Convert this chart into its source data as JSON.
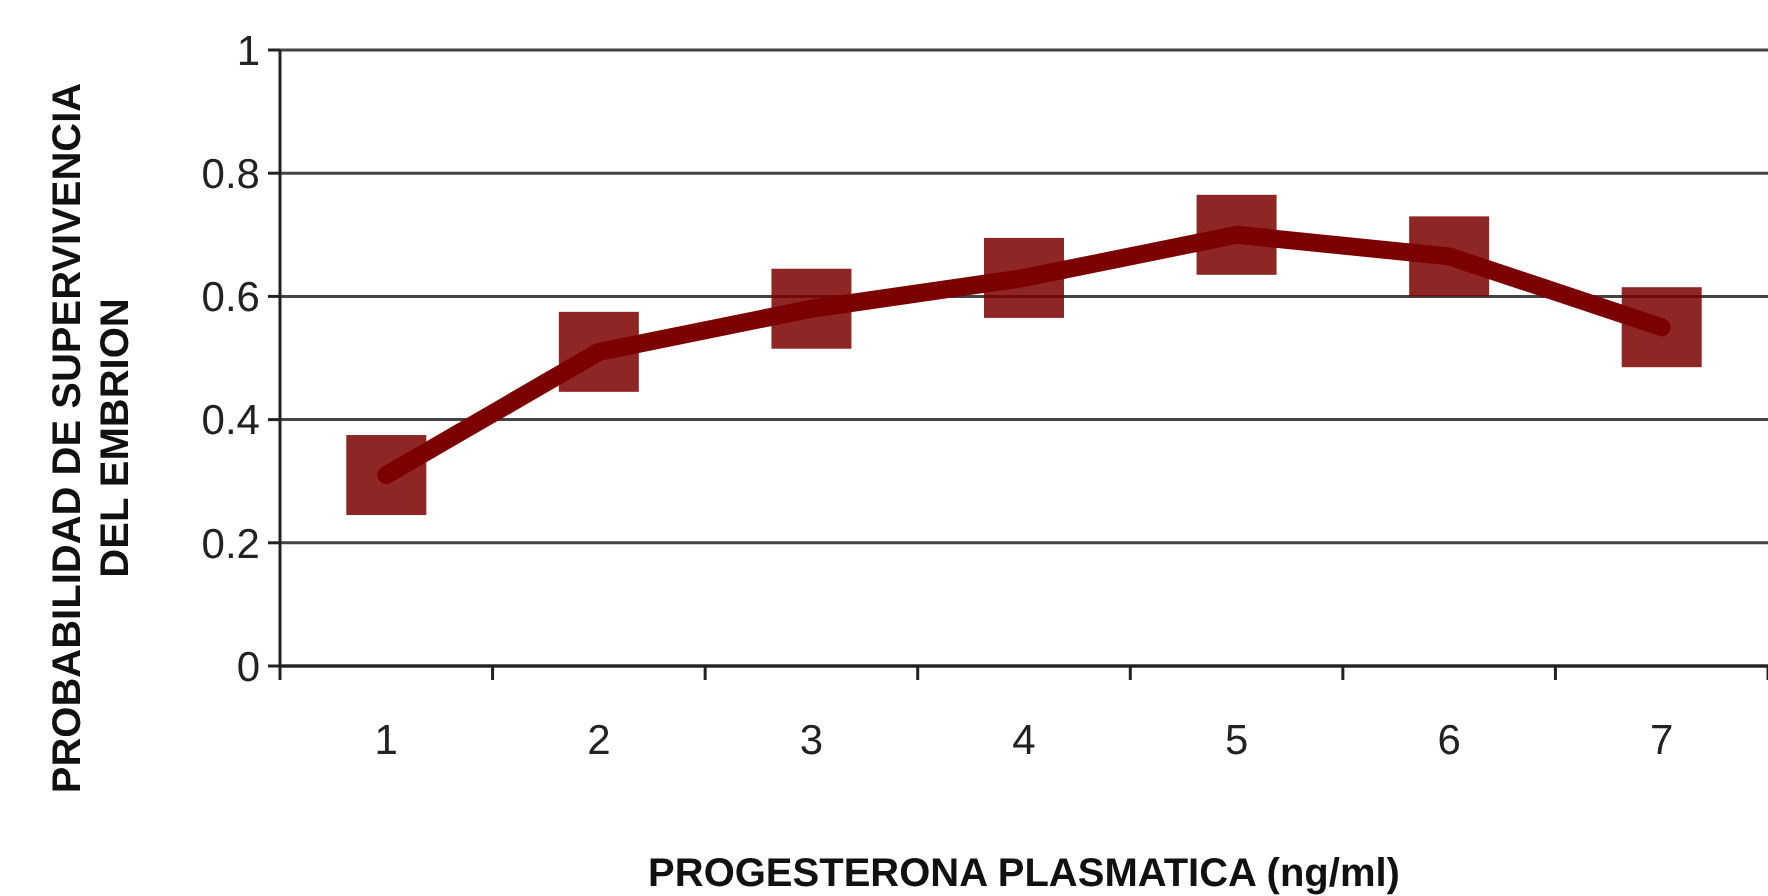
{
  "chart_data": {
    "type": "line",
    "xlabel": "PROGESTERONA PLASMATICA (ng/ml)",
    "ylabel": "PROBABILIDAD DE SUPERVIVENCIA\nDEL EMBRION",
    "categories": [
      "1",
      "2",
      "3",
      "4",
      "5",
      "6",
      "7"
    ],
    "series": [
      {
        "color": "#7b0000",
        "values": [
          0.31,
          0.51,
          0.58,
          0.63,
          0.7,
          0.665,
          0.55
        ]
      }
    ],
    "ylim": [
      0,
      1
    ],
    "yticks": [
      0,
      0.2,
      0.4,
      0.6,
      0.8,
      1
    ],
    "grid": "y",
    "marker": "square",
    "line_style": "solid"
  }
}
